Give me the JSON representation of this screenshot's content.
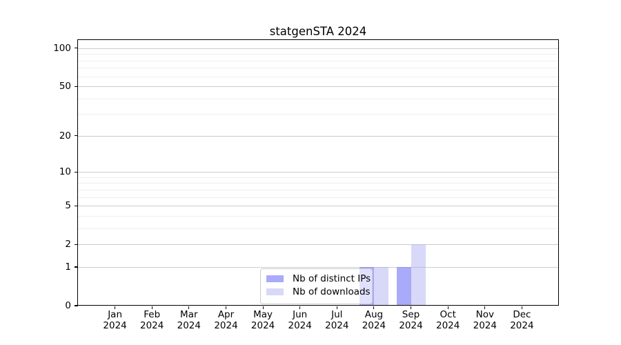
{
  "chart_data": {
    "type": "bar",
    "title": "statgenSTA 2024",
    "categories": [
      "Jan 2024",
      "Feb 2024",
      "Mar 2024",
      "Apr 2024",
      "May 2024",
      "Jun 2024",
      "Jul 2024",
      "Aug 2024",
      "Sep 2024",
      "Oct 2024",
      "Nov 2024",
      "Dec 2024"
    ],
    "series": [
      {
        "name": "Nb of distinct IPs",
        "values": [
          0,
          0,
          0,
          0,
          0,
          0,
          0,
          1,
          1,
          0,
          0,
          0
        ],
        "color": "rgba(118,118,247,0.62)"
      },
      {
        "name": "Nb of downloads",
        "values": [
          0,
          0,
          0,
          0,
          0,
          0,
          0,
          1,
          2,
          0,
          0,
          0
        ],
        "color": "rgba(168,168,240,0.45)"
      }
    ],
    "xlabel": "",
    "ylabel": "",
    "yscale": "log1p",
    "ylim": [
      0,
      116
    ],
    "yticks_major": [
      0,
      1,
      2,
      5,
      10,
      20,
      50,
      100
    ],
    "yticks_minor": [
      3,
      4,
      6,
      7,
      8,
      9,
      30,
      40,
      60,
      70,
      80,
      90
    ],
    "grid": "horizontal",
    "legend_position": "lower-center-inside"
  },
  "colors": {
    "bar_distinct_ips_solid": "#aaaafa",
    "bar_downloads_solid": "#dcdcf8",
    "grid_major": "#cbcbcb",
    "grid_minor": "#efefef",
    "axis_spine": "#000000"
  }
}
